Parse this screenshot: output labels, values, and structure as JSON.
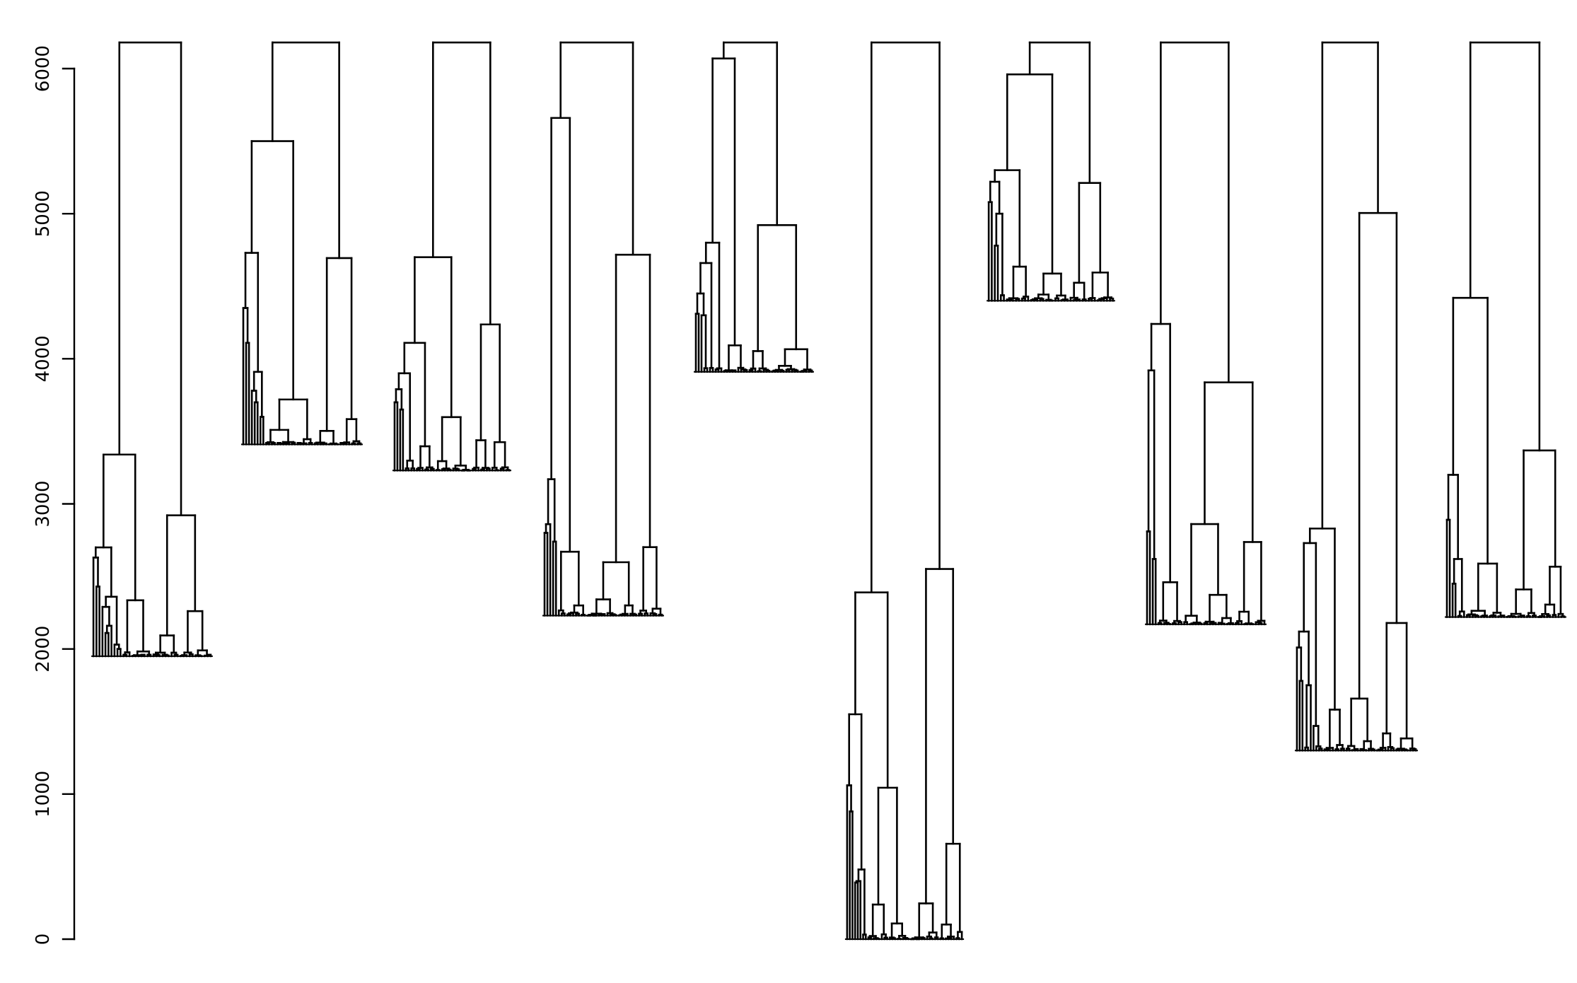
{
  "chart_data": {
    "type": "dendrogram",
    "title": "",
    "xlabel": "",
    "ylabel": "",
    "ylim": [
      0,
      6200
    ],
    "y_ticks": [
      0,
      1000,
      2000,
      3000,
      4000,
      5000,
      6000
    ],
    "y_tick_labels": [
      "0",
      "1000",
      "2000",
      "3000",
      "4000",
      "5000",
      "6000"
    ],
    "line_color": "#000000",
    "panel_top_height": 6180,
    "panels": [
      {
        "name": "dendrogram-1",
        "leaf_count": 40,
        "merges": [
          {
            "height": 6180,
            "left_child": 6010,
            "right_child": 5540,
            "left_offset": 6180,
            "right_offset": 5540
          },
          {
            "height": 3340,
            "left_child": 3340,
            "right_child": 5540,
            "left_offset": 3340,
            "right_offset": 2430
          },
          {
            "height": 2700,
            "left_child": 2310,
            "right_child": 2630,
            "left_offset": 2700,
            "right_offset": 2630
          },
          {
            "height": 2630,
            "left_child": 2360,
            "right_child": 2280,
            "left_offset": 2360,
            "right_offset": 2280
          },
          {
            "height": 2430,
            "left_child": 2430,
            "right_child": 2160,
            "left_offset": 2430,
            "right_offset": 2360
          },
          {
            "height": 2360,
            "left_child": 2290,
            "right_child": 2280,
            "left_offset": 2290,
            "right_offset": 2280
          },
          {
            "height": 2290,
            "left_child": 2030,
            "right_child": 2030,
            "left_offset": 2030,
            "right_offset": 2030
          },
          {
            "height": 2160,
            "left_child": 1960,
            "right_child": 1960,
            "left_offset": 1960,
            "right_offset": 1960
          },
          {
            "height": 2110,
            "left_child": 1960,
            "right_child": 1960,
            "left_offset": 1960,
            "right_offset": 1960
          },
          {
            "height": 2030,
            "left_child": 1980,
            "right_child": 1980,
            "left_offset": 1980,
            "right_offset": 1980
          },
          {
            "height": 2000,
            "left_child": 1970,
            "right_child": 1970,
            "left_offset": 1970,
            "right_offset": 1970
          }
        ],
        "leaf_baseline": 1950
      },
      {
        "name": "dendrogram-2",
        "leaf_count": 42,
        "merges": [
          {
            "height": 6180,
            "left_child": 3910,
            "right_child": 5500,
            "left_offset": 3910,
            "right_offset": 5500
          },
          {
            "height": 5500,
            "left_child": 4730,
            "right_child": 3600,
            "left_offset": 4730,
            "right_offset": 3600
          },
          {
            "height": 4730,
            "left_child": 4350,
            "right_child": 3700,
            "left_offset": 4350,
            "right_offset": 3700
          },
          {
            "height": 4350,
            "left_child": 3780,
            "right_child": 4110,
            "left_offset": 3780,
            "right_offset": 4110
          },
          {
            "height": 4110,
            "left_child": 3780,
            "right_child": 3700,
            "left_offset": 3780,
            "right_offset": 3700
          },
          {
            "height": 3910,
            "left_child": 3610,
            "right_child": 3410,
            "left_offset": 3610,
            "right_offset": 3410
          },
          {
            "height": 3780,
            "left_child": 3660,
            "right_child": 3460,
            "left_offset": 3660,
            "right_offset": 3460
          },
          {
            "height": 3700,
            "left_child": 3590,
            "right_child": 3450,
            "left_offset": 3590,
            "right_offset": 3450
          },
          {
            "height": 3600,
            "left_child": 3520,
            "right_child": 3460,
            "left_offset": 3520,
            "right_offset": 3460
          }
        ],
        "leaf_baseline": 3410
      },
      {
        "name": "dendrogram-3",
        "leaf_count": 42,
        "merges": [
          {
            "height": 6180,
            "left_child": 4700,
            "right_child": 4110,
            "left_offset": 4700,
            "right_offset": 4110
          },
          {
            "height": 4700,
            "left_child": 3900,
            "right_child": 3650,
            "left_offset": 3900,
            "right_offset": 3650
          },
          {
            "height": 4110,
            "left_child": 3790,
            "right_child": 3300,
            "left_offset": 3790,
            "right_offset": 3300
          },
          {
            "height": 3900,
            "left_child": 3290,
            "right_child": 3700,
            "left_offset": 3290,
            "right_offset": 3700
          },
          {
            "height": 3790,
            "left_child": 3500,
            "right_child": 3460,
            "left_offset": 3500,
            "right_offset": 3460
          },
          {
            "height": 3700,
            "left_child": 3530,
            "right_child": 3450,
            "left_offset": 3530,
            "right_offset": 3450
          },
          {
            "height": 3650,
            "left_child": 3490,
            "right_child": 3290,
            "left_offset": 3490,
            "right_offset": 3290
          }
        ],
        "leaf_baseline": 3230
      },
      {
        "name": "dendrogram-4",
        "leaf_count": 42,
        "merges": [
          {
            "height": 6180,
            "left_child": 5660,
            "right_child": 5660,
            "left_offset": 5660,
            "right_offset": 5660
          },
          {
            "height": 5660,
            "left_child": 2800,
            "right_child": 3170,
            "left_offset": 2800,
            "right_offset": 3170
          },
          {
            "height": 3170,
            "left_child": 2860,
            "right_child": 2740,
            "left_offset": 2860,
            "right_offset": 2740
          },
          {
            "height": 2860,
            "left_child": 2800,
            "right_child": 2330,
            "left_offset": 2800,
            "right_offset": 2330
          },
          {
            "height": 2800,
            "left_child": 2670,
            "right_child": 2330,
            "left_offset": 2670,
            "right_offset": 2330
          },
          {
            "height": 2740,
            "left_child": 2500,
            "right_child": 2420,
            "left_offset": 2500,
            "right_offset": 2420
          },
          {
            "height": 2670,
            "left_child": 2520,
            "right_child": 2640,
            "left_offset": 2520,
            "right_offset": 2640
          }
        ],
        "leaf_baseline": 2230
      },
      {
        "name": "dendrogram-5",
        "leaf_count": 42,
        "merges": [
          {
            "height": 6180,
            "left_child": 4660,
            "right_child": 6070,
            "left_offset": 4660,
            "right_offset": 6070
          },
          {
            "height": 6070,
            "left_child": 4300,
            "right_child": 4800,
            "left_offset": 4300,
            "right_offset": 4800
          },
          {
            "height": 4800,
            "left_child": 4580,
            "right_child": 4050,
            "left_offset": 4580,
            "right_offset": 4050
          },
          {
            "height": 4660,
            "left_child": 4450,
            "right_child": 4440,
            "left_offset": 4450,
            "right_offset": 4440
          },
          {
            "height": 4450,
            "left_child": 4150,
            "right_child": 4310,
            "left_offset": 4150,
            "right_offset": 4310
          },
          {
            "height": 4300,
            "left_child": 4110,
            "right_child": 4300,
            "left_offset": 4110,
            "right_offset": 4300
          },
          {
            "height": 4310,
            "left_child": 4060,
            "right_child": 4250,
            "left_offset": 4060,
            "right_offset": 4250
          }
        ],
        "leaf_baseline": 3910
      },
      {
        "name": "dendrogram-6",
        "leaf_count": 44,
        "merges": [
          {
            "height": 6180,
            "left_child": 480,
            "right_child": 2390,
            "left_offset": 480,
            "right_offset": 2390
          },
          {
            "height": 2390,
            "left_child": 1550,
            "right_child": 200,
            "left_offset": 1550,
            "right_offset": 200
          },
          {
            "height": 1550,
            "left_child": 1060,
            "right_child": 180,
            "left_offset": 1060,
            "right_offset": 180
          },
          {
            "height": 1060,
            "left_child": 880,
            "right_child": 110,
            "left_offset": 880,
            "right_offset": 110
          },
          {
            "height": 880,
            "left_child": 400,
            "right_child": 300,
            "left_offset": 400,
            "right_offset": 300
          },
          {
            "height": 480,
            "left_child": 290,
            "right_child": 390,
            "left_offset": 290,
            "right_offset": 390
          },
          {
            "height": 400,
            "left_child": 200,
            "right_child": 300,
            "left_offset": 200,
            "right_offset": 300
          },
          {
            "height": 390,
            "left_child": 180,
            "right_child": 270,
            "left_offset": 180,
            "right_offset": 270
          }
        ],
        "leaf_baseline": 0
      },
      {
        "name": "dendrogram-7",
        "leaf_count": 42,
        "merges": [
          {
            "height": 6180,
            "left_child": 5300,
            "right_child": 5960,
            "left_offset": 5300,
            "right_offset": 5960
          },
          {
            "height": 5960,
            "left_child": 5300,
            "right_child": 5080,
            "left_offset": 5300,
            "right_offset": 5080
          },
          {
            "height": 5300,
            "left_child": 5220,
            "right_child": 4780,
            "left_offset": 5220,
            "right_offset": 4780
          },
          {
            "height": 5220,
            "left_child": 4600,
            "right_child": 4660,
            "left_offset": 4600,
            "right_offset": 4660
          },
          {
            "height": 5080,
            "left_child": 5000,
            "right_child": 4780,
            "left_offset": 5000,
            "right_offset": 4780
          },
          {
            "height": 5000,
            "left_child": 4530,
            "right_child": 4780,
            "left_offset": 4530,
            "right_offset": 4780
          },
          {
            "height": 4780,
            "left_child": 4520,
            "right_child": 4580,
            "left_offset": 4520,
            "right_offset": 4580
          }
        ],
        "leaf_baseline": 4400
      },
      {
        "name": "dendrogram-8",
        "leaf_count": 42,
        "merges": [
          {
            "height": 6180,
            "left_child": 4240,
            "right_child": 3920,
            "left_offset": 4240,
            "right_offset": 3920
          },
          {
            "height": 4240,
            "left_child": 2810,
            "right_child": 3920,
            "left_offset": 2810,
            "right_offset": 3920
          },
          {
            "height": 3920,
            "left_child": 3000,
            "right_child": 2460,
            "left_offset": 3000,
            "right_offset": 2460
          },
          {
            "height": 2810,
            "left_child": 2340,
            "right_child": 2620,
            "left_offset": 2340,
            "right_offset": 2620
          },
          {
            "height": 2620,
            "left_child": 2510,
            "right_child": 2390,
            "left_offset": 2510,
            "right_offset": 2390
          },
          {
            "height": 2460,
            "left_child": 2460,
            "right_child": 2330,
            "left_offset": 2460,
            "right_offset": 2330
          }
        ],
        "leaf_baseline": 2170
      },
      {
        "name": "dendrogram-9",
        "leaf_count": 44,
        "merges": [
          {
            "height": 6180,
            "left_child": 2830,
            "right_child": 2730,
            "left_offset": 2830,
            "right_offset": 2730
          },
          {
            "height": 2830,
            "left_child": 1780,
            "right_child": 2120,
            "left_offset": 1780,
            "right_offset": 2120
          },
          {
            "height": 2730,
            "left_child": 1460,
            "right_child": 1460,
            "left_offset": 1460,
            "right_offset": 1460
          },
          {
            "height": 2120,
            "left_child": 1750,
            "right_child": 2010,
            "left_offset": 1750,
            "right_offset": 2010
          },
          {
            "height": 2010,
            "left_child": 1480,
            "right_child": 1470,
            "left_offset": 1480,
            "right_offset": 1470
          },
          {
            "height": 1780,
            "left_child": 1620,
            "right_child": 1610,
            "left_offset": 1620,
            "right_offset": 1610
          },
          {
            "height": 1750,
            "left_child": 1360,
            "right_child": 1400,
            "left_offset": 1360,
            "right_offset": 1400
          }
        ],
        "leaf_baseline": 1300
      },
      {
        "name": "dendrogram-10",
        "leaf_count": 42,
        "merges": [
          {
            "height": 6180,
            "left_child": 3200,
            "right_child": 4420,
            "left_offset": 3200,
            "right_offset": 4420
          },
          {
            "height": 4420,
            "left_child": 3550,
            "right_child": 2570,
            "left_offset": 3550,
            "right_offset": 2570
          },
          {
            "height": 3200,
            "left_child": 2890,
            "right_child": 2480,
            "left_offset": 2890,
            "right_offset": 2480
          },
          {
            "height": 2890,
            "left_child": 2510,
            "right_child": 2620,
            "left_offset": 2510,
            "right_offset": 2620
          },
          {
            "height": 2620,
            "left_child": 2440,
            "right_child": 2450,
            "left_offset": 2440,
            "right_offset": 2450
          },
          {
            "height": 2450,
            "left_child": 2400,
            "right_child": 2360,
            "left_offset": 2400,
            "right_offset": 2360
          }
        ],
        "leaf_baseline": 2220
      }
    ]
  }
}
